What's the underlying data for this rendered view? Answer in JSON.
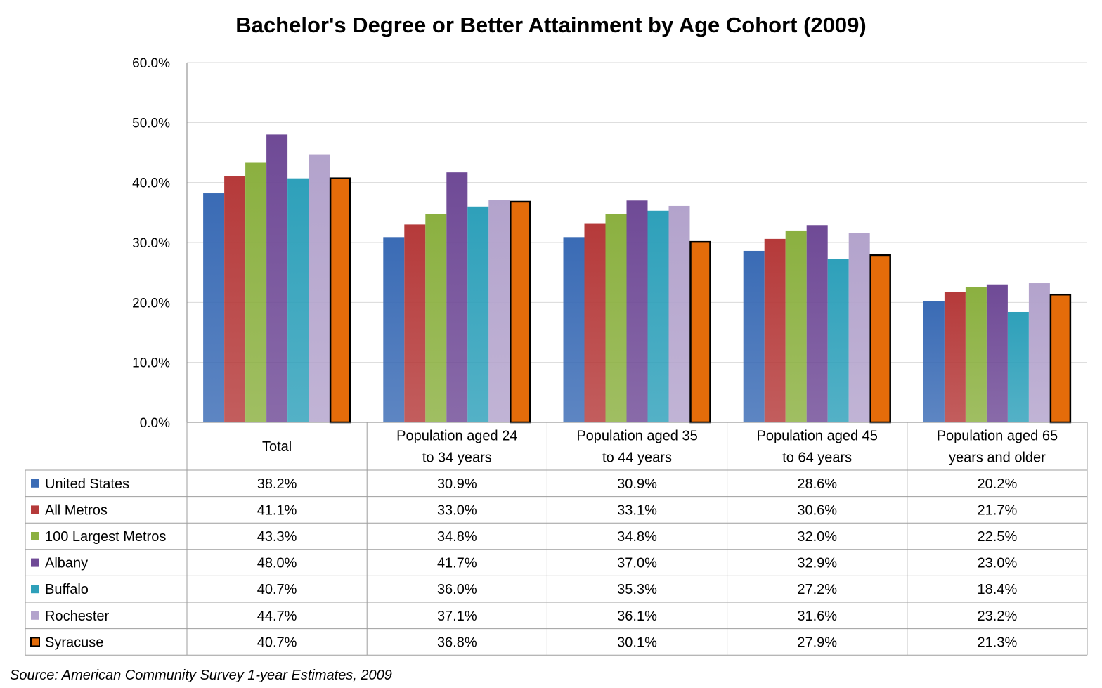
{
  "chart_data": {
    "type": "bar",
    "title": "Bachelor's Degree or Better Attainment by Age Cohort (2009)",
    "categories": [
      [
        "Total"
      ],
      [
        "Population aged 24",
        "to 34 years"
      ],
      [
        "Population aged 35",
        "to 44 years"
      ],
      [
        "Population aged 45",
        "to 64 years"
      ],
      [
        "Population aged 65",
        "years and older"
      ]
    ],
    "series": [
      {
        "name": "United States",
        "color": "#3a6bb5",
        "values": [
          38.2,
          30.9,
          30.9,
          28.6,
          20.2
        ],
        "labels": [
          "38.2%",
          "30.9%",
          "30.9%",
          "28.6%",
          "20.2%"
        ]
      },
      {
        "name": "All Metros",
        "color": "#b53a3a",
        "values": [
          41.1,
          33.0,
          33.1,
          30.6,
          21.7
        ],
        "labels": [
          "41.1%",
          "33.0%",
          "33.1%",
          "30.6%",
          "21.7%"
        ]
      },
      {
        "name": "100 Largest Metros",
        "color": "#8bb040",
        "values": [
          43.3,
          34.8,
          34.8,
          32.0,
          22.5
        ],
        "labels": [
          "43.3%",
          "34.8%",
          "34.8%",
          "32.0%",
          "22.5%"
        ]
      },
      {
        "name": "Albany",
        "color": "#6f4a96",
        "values": [
          48.0,
          41.7,
          37.0,
          32.9,
          23.0
        ],
        "labels": [
          "48.0%",
          "41.7%",
          "37.0%",
          "32.9%",
          "23.0%"
        ]
      },
      {
        "name": "Buffalo",
        "color": "#2ea0ba",
        "values": [
          40.7,
          36.0,
          35.3,
          27.2,
          18.4
        ],
        "labels": [
          "40.7%",
          "36.0%",
          "35.3%",
          "27.2%",
          "18.4%"
        ]
      },
      {
        "name": "Rochester",
        "color": "#b3a3cc",
        "values": [
          44.7,
          37.1,
          36.1,
          31.6,
          23.2
        ],
        "labels": [
          "44.7%",
          "37.1%",
          "36.1%",
          "31.6%",
          "23.2%"
        ]
      },
      {
        "name": "Syracuse",
        "color": "#e46c0a",
        "outline": "#000000",
        "values": [
          40.7,
          36.8,
          30.1,
          27.9,
          21.3
        ],
        "labels": [
          "40.7%",
          "36.8%",
          "30.1%",
          "27.9%",
          "21.3%"
        ]
      }
    ],
    "ylim": [
      0,
      60
    ],
    "yticks": [
      "0.0%",
      "10.0%",
      "20.0%",
      "30.0%",
      "40.0%",
      "50.0%",
      "60.0%"
    ],
    "grid": true,
    "legend": "data table"
  },
  "source": "Source: American Community Survey 1-year Estimates, 2009"
}
